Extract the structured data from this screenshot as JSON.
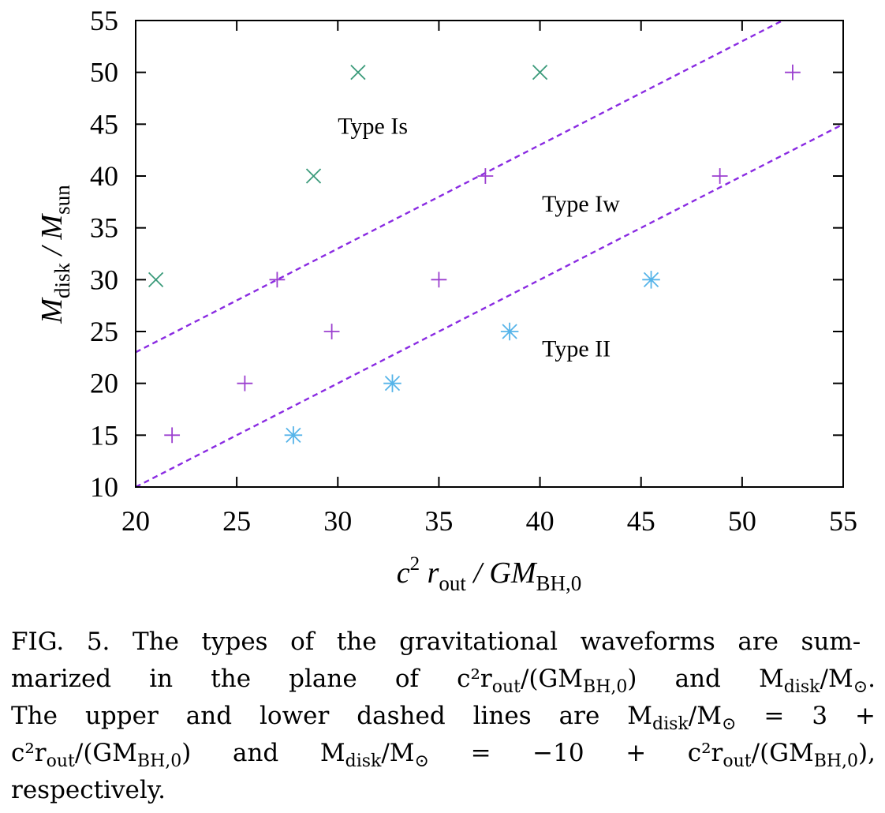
{
  "chart_data": {
    "type": "scatter",
    "title": "",
    "xlabel": {
      "c": "c",
      "sup": "2",
      "r": " r",
      "sub": "out",
      "rest": " / GM",
      "sub2": "BH,0"
    },
    "ylabel": {
      "M": "M",
      "sub": "disk",
      "mid": " / M",
      "sub2": "sun"
    },
    "xlim": [
      20,
      55
    ],
    "ylim": [
      10,
      55
    ],
    "xticks": [
      20,
      25,
      30,
      35,
      40,
      45,
      50,
      55
    ],
    "yticks": [
      10,
      15,
      20,
      25,
      30,
      35,
      40,
      45,
      50,
      55
    ],
    "grid": false,
    "series": [
      {
        "marker": "x",
        "color": "#3a9a7a",
        "points": [
          [
            21,
            30
          ],
          [
            28.8,
            40
          ],
          [
            31,
            50
          ],
          [
            40,
            50
          ]
        ]
      },
      {
        "marker": "plus",
        "color": "#9b3fcf",
        "points": [
          [
            21.8,
            15
          ],
          [
            25.4,
            20
          ],
          [
            27,
            30
          ],
          [
            29.7,
            25
          ],
          [
            35,
            30
          ],
          [
            37.3,
            40
          ],
          [
            48.9,
            40
          ],
          [
            52.5,
            50
          ]
        ]
      },
      {
        "marker": "star",
        "color": "#56b4e9",
        "points": [
          [
            27.8,
            15
          ],
          [
            32.7,
            20
          ],
          [
            38.5,
            25
          ],
          [
            45.5,
            30
          ]
        ]
      }
    ],
    "lines": [
      {
        "intercept": 3,
        "slope": 1,
        "style": "dashed",
        "color": "#8a2be2"
      },
      {
        "intercept": -10,
        "slope": 1,
        "style": "dashed",
        "color": "#8a2be2"
      }
    ],
    "annotations": [
      {
        "text": "Type Is",
        "x": 30,
        "y": 45
      },
      {
        "text": "Type Iw",
        "x": 40.1,
        "y": 37.5
      },
      {
        "text": "Type II",
        "x": 40.1,
        "y": 23.5
      }
    ]
  },
  "caption": {
    "lines": [
      [
        "FIG. 5.  The types of the gravitational waveforms are sum-"
      ],
      [
        "marized in the plane of ",
        "c²r",
        "out",
        "/(GM",
        "BH,0",
        ") and M",
        "disk",
        "/M",
        "⊙",
        "."
      ],
      [
        "The upper and lower dashed lines are M",
        "disk",
        "/M",
        "⊙",
        " = 3 +"
      ],
      [
        "c²r",
        "out",
        "/(GM",
        "BH,0",
        ") and M",
        "disk",
        "/M",
        "⊙",
        " = −10 + c²r",
        "out",
        "/(GM",
        "BH,0",
        "),"
      ],
      [
        "respectively."
      ]
    ]
  }
}
